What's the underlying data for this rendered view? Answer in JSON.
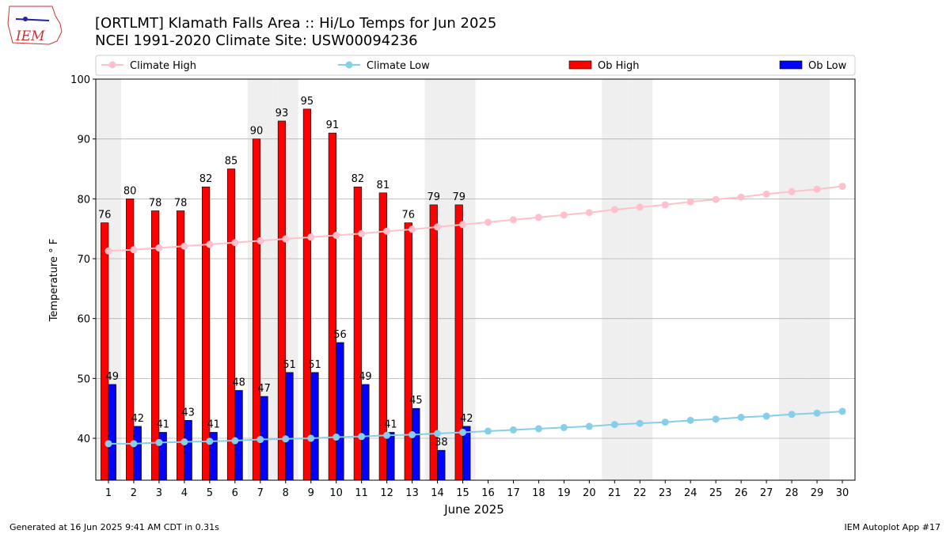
{
  "logo": "IEM",
  "chart_data": {
    "type": "bar",
    "title": "[ORTLMT] Klamath Falls Area :: Hi/Lo Temps for Jun 2025",
    "subtitle": "NCEI 1991-2020 Climate Site: USW00094236",
    "x_label": "June 2025",
    "y_label": "Temperature ° F",
    "x": [
      1,
      2,
      3,
      4,
      5,
      6,
      7,
      8,
      9,
      10,
      11,
      12,
      13,
      14,
      15,
      16,
      17,
      18,
      19,
      20,
      21,
      22,
      23,
      24,
      25,
      26,
      27,
      28,
      29,
      30
    ],
    "xlim": [
      0.5,
      30.5
    ],
    "xticks": [
      1,
      2,
      3,
      4,
      5,
      6,
      7,
      8,
      9,
      10,
      11,
      12,
      13,
      14,
      15,
      16,
      17,
      18,
      19,
      20,
      21,
      22,
      23,
      24,
      25,
      26,
      27,
      28,
      29,
      30
    ],
    "ylim": [
      33,
      100
    ],
    "yticks": [
      40,
      50,
      60,
      70,
      80,
      90,
      100
    ],
    "grid": true,
    "shaded_days": [
      1,
      7,
      8,
      14,
      15,
      21,
      22,
      28,
      29
    ],
    "legend": "top",
    "series": [
      {
        "name": "Climate High",
        "type": "line",
        "color": "#ffc0cb",
        "values": [
          71.3,
          71.5,
          71.8,
          72.1,
          72.4,
          72.7,
          73.0,
          73.3,
          73.6,
          73.9,
          74.2,
          74.6,
          74.9,
          75.3,
          75.7,
          76.1,
          76.5,
          76.9,
          77.3,
          77.7,
          78.2,
          78.6,
          79.0,
          79.5,
          79.9,
          80.3,
          80.8,
          81.2,
          81.6,
          82.1
        ]
      },
      {
        "name": "Climate Low",
        "type": "line",
        "color": "#87ceeb",
        "values": [
          39.1,
          39.1,
          39.3,
          39.4,
          39.5,
          39.6,
          39.8,
          39.9,
          40.0,
          40.2,
          40.3,
          40.5,
          40.6,
          40.8,
          41.0,
          41.2,
          41.4,
          41.6,
          41.8,
          42.0,
          42.3,
          42.5,
          42.7,
          43.0,
          43.2,
          43.5,
          43.7,
          44.0,
          44.2,
          44.5
        ]
      },
      {
        "name": "Ob High",
        "type": "bar",
        "color": "#ff0000",
        "values": [
          76,
          80,
          78,
          78,
          82,
          85,
          90,
          93,
          95,
          91,
          82,
          81,
          76,
          79,
          79,
          null,
          null,
          null,
          null,
          null,
          null,
          null,
          null,
          null,
          null,
          null,
          null,
          null,
          null,
          null
        ]
      },
      {
        "name": "Ob Low",
        "type": "bar",
        "color": "#0000ff",
        "values": [
          49,
          42,
          41,
          43,
          41,
          48,
          47,
          51,
          51,
          56,
          49,
          41,
          45,
          38,
          42,
          null,
          null,
          null,
          null,
          null,
          null,
          null,
          null,
          null,
          null,
          null,
          null,
          null,
          null,
          null
        ]
      }
    ],
    "footer_left": "Generated at 16 Jun 2025 9:41 AM CDT in 0.31s",
    "footer_right": "IEM Autoplot App #17"
  }
}
